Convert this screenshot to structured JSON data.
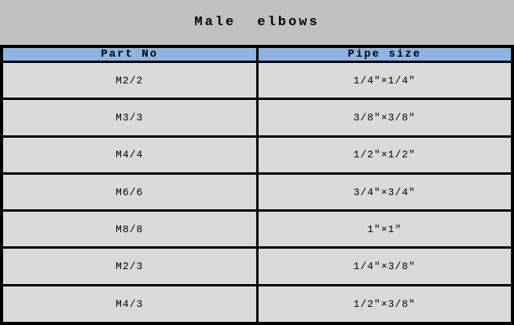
{
  "title": "Male elbows",
  "colors": {
    "page_bg": "#c0c0c0",
    "header_bg": "#8db4e2",
    "row_bg": "#d9d9d9",
    "border": "#000000",
    "text": "#000000"
  },
  "table": {
    "columns": [
      "Part No",
      "Pipe size"
    ],
    "rows": [
      {
        "part_no": "M2/2",
        "pipe_size": "1/4″×1/4″"
      },
      {
        "part_no": "M3/3",
        "pipe_size": "3/8″×3/8″"
      },
      {
        "part_no": "M4/4",
        "pipe_size": "1/2″×1/2″"
      },
      {
        "part_no": "M6/6",
        "pipe_size": "3/4″×3/4″"
      },
      {
        "part_no": "M8/8",
        "pipe_size": "1″×1″"
      },
      {
        "part_no": "M2/3",
        "pipe_size": "1/4″×3/8″"
      },
      {
        "part_no": "M4/3",
        "pipe_size": "1/2″×3/8″"
      }
    ]
  }
}
